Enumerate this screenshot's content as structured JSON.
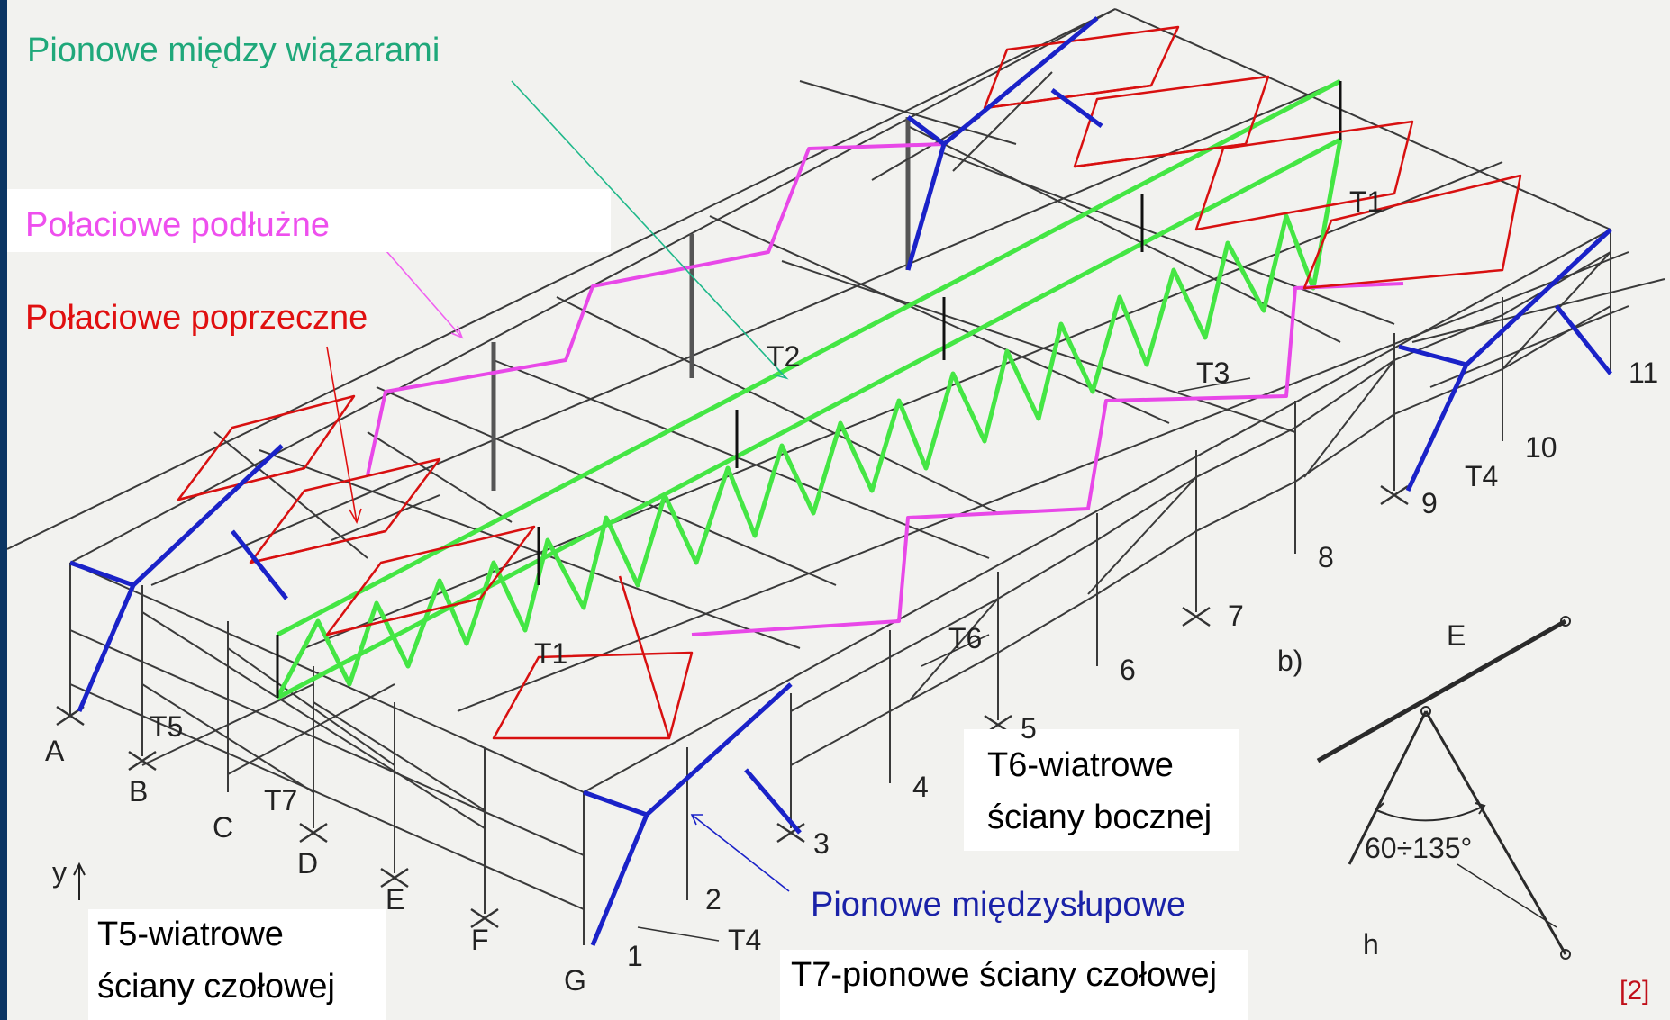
{
  "legend": {
    "vertical_between_trusses": "Pionowe między wiązarami",
    "roof_longitudinal": "Połaciowe podłużne",
    "roof_transverse": "Połaciowe poprzeczne",
    "vertical_between_columns": "Pionowe międzysłupowe",
    "t6_line1": "T6-wiatrowe",
    "t6_line2": "ściany bocznej",
    "t5_line1": "T5-wiatrowe",
    "t5_line2": "ściany czołowej",
    "t7": "T7-pionowe ściany czołowej"
  },
  "colors": {
    "green": "#2ab37a",
    "pink": "#f052f0",
    "red": "#e01010",
    "blue": "#1e1ea0",
    "paper": "#f2f2ef",
    "frame": "#0b3563",
    "ref": "#c0101a"
  },
  "drawing_labels": {
    "T1_left": "T1",
    "T1_right": "T1",
    "T2": "T2",
    "T3": "T3",
    "T4_right": "T4",
    "T4_bottom": "T4",
    "T5": "T5",
    "T6": "T6",
    "T7": "T7",
    "col_A": "A",
    "col_B": "B",
    "col_C": "C",
    "col_D": "D",
    "col_E": "E",
    "col_F": "F",
    "col_G": "G",
    "col_1": "1",
    "col_2": "2",
    "col_3": "3",
    "col_4": "4",
    "col_5": "5",
    "col_6": "6",
    "col_7": "7",
    "col_8": "8",
    "col_9": "9",
    "col_10": "10",
    "col_11": "11",
    "axis_y": "y",
    "variant_b": "b)",
    "detail_E": "E",
    "detail_angle": "60÷135°",
    "detail_h": "h"
  },
  "reference": "[2]"
}
